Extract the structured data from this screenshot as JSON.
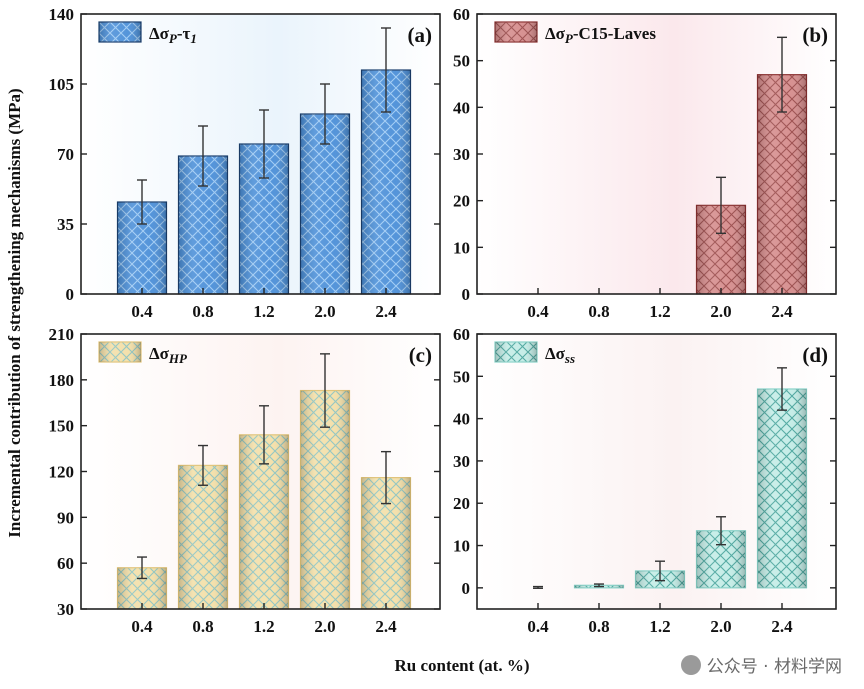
{
  "figure": {
    "ylabel": "Incremental contribution of strengthening mechanisms (MPa)",
    "xlabel": "Ru content (at. %)"
  },
  "watermark": {
    "text": "公众号 · 材料学网",
    "icon": "wechat-logo-icon"
  },
  "chart_data": [
    {
      "panel": "(a)",
      "type": "bar",
      "categories": [
        "0.4",
        "0.8",
        "1.2",
        "2.0",
        "2.4"
      ],
      "series": [
        {
          "name": "Δσ_P-τ_1",
          "values": [
            46,
            69,
            75,
            90,
            112
          ],
          "errors": [
            11,
            15,
            17,
            15,
            21
          ]
        }
      ],
      "ylim": [
        0,
        140
      ],
      "yticks": [
        0,
        35,
        70,
        105,
        140
      ],
      "legend_position": "top-left",
      "colors": {
        "fill": "#4b8fd8",
        "edge": "#1b3f6e",
        "hatch": "#9dcaf4",
        "bg": "#eaf4fc"
      }
    },
    {
      "panel": "(b)",
      "type": "bar",
      "categories": [
        "0.4",
        "0.8",
        "1.2",
        "2.0",
        "2.4"
      ],
      "series": [
        {
          "name": "Δσ_P-C15-Laves",
          "values": [
            0,
            0,
            0,
            19,
            47
          ],
          "errors": [
            0,
            0,
            0,
            6,
            8
          ]
        }
      ],
      "ylim": [
        0,
        60
      ],
      "yticks": [
        0,
        10,
        20,
        30,
        40,
        50,
        60
      ],
      "legend_position": "top-left",
      "colors": {
        "fill": "#d58c8c",
        "edge": "#8a3030",
        "hatch": "#9a4a4a",
        "bg": "#fbe8ec"
      }
    },
    {
      "panel": "(c)",
      "type": "bar",
      "categories": [
        "0.4",
        "0.8",
        "1.2",
        "2.0",
        "2.4"
      ],
      "series": [
        {
          "name": "Δσ_HP",
          "values": [
            57,
            124,
            144,
            173,
            116
          ],
          "errors": [
            7,
            13,
            19,
            24,
            17
          ]
        }
      ],
      "ylim": [
        30,
        210
      ],
      "yticks": [
        30,
        60,
        90,
        120,
        150,
        180,
        210
      ],
      "legend_position": "top-left",
      "colors": {
        "fill": "#f3dfa8",
        "edge": "#e0c378",
        "hatch": "#8fc4c0",
        "bg": "#fdf3f1"
      }
    },
    {
      "panel": "(d)",
      "type": "bar",
      "categories": [
        "0.4",
        "0.8",
        "1.2",
        "2.0",
        "2.4"
      ],
      "series": [
        {
          "name": "Δσ_ss",
          "values": [
            0.1,
            0.6,
            4,
            13.5,
            47
          ],
          "errors": [
            0.2,
            0.3,
            2.3,
            3.3,
            5
          ]
        }
      ],
      "ylim": [
        -5,
        60
      ],
      "yticks": [
        0,
        10,
        20,
        30,
        40,
        50,
        60
      ],
      "legend_position": "top-left",
      "colors": {
        "fill": "#c3ece6",
        "edge": "#87d2c8",
        "hatch": "#4aa59d",
        "bg": "#fbf2f2"
      }
    }
  ]
}
